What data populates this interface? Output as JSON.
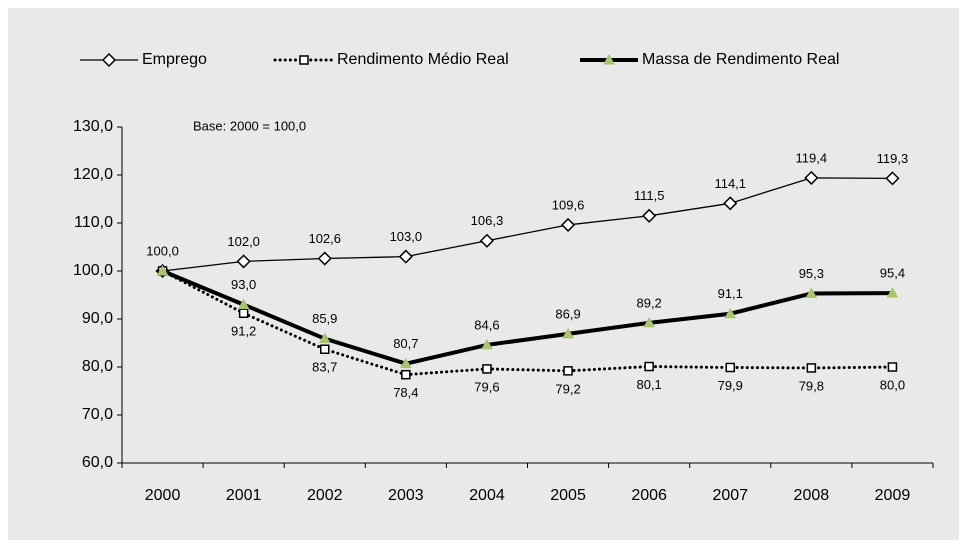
{
  "chart_data": {
    "type": "line",
    "annotation": "Base: 2000 = 100,0",
    "categories": [
      "2000",
      "2001",
      "2002",
      "2003",
      "2004",
      "2005",
      "2006",
      "2007",
      "2008",
      "2009"
    ],
    "series": [
      {
        "name": "Emprego",
        "color": "#000000",
        "marker": "diamond",
        "line": "thin",
        "label_side": "above",
        "values": [
          100,
          102.0,
          102.6,
          103.0,
          106.3,
          109.6,
          111.5,
          114.1,
          119.4,
          119.3
        ],
        "value_labels": [
          "100,0",
          "102,0",
          "102,6",
          "103,0",
          "106,3",
          "109,6",
          "111,5",
          "114,1",
          "119,4",
          "119,3"
        ]
      },
      {
        "name": "Rendimento Médio Real",
        "color": "#000000",
        "marker": "square",
        "line": "dotted",
        "label_side": "below",
        "values": [
          100,
          91.2,
          83.7,
          78.4,
          79.6,
          79.2,
          80.1,
          79.9,
          79.8,
          80.0
        ],
        "value_labels": [
          null,
          "91,2",
          "83,7",
          "78,4",
          "79,6",
          "79,2",
          "80,1",
          "79,9",
          "79,8",
          "80,0"
        ]
      },
      {
        "name": "Massa de Rendimento Real",
        "color": "#000000",
        "marker": "triangle",
        "marker_color": "#a9c46e",
        "line": "thick",
        "label_side": "above",
        "values": [
          100,
          93.0,
          85.9,
          80.7,
          84.6,
          86.9,
          89.2,
          91.1,
          95.3,
          95.4
        ],
        "value_labels": [
          null,
          "93,0",
          "85,9",
          "80,7",
          "84,6",
          "86,9",
          "89,2",
          "91,1",
          "95,3",
          "95,4"
        ]
      }
    ],
    "ylim": [
      60,
      130
    ],
    "yticks": [
      {
        "value": 60,
        "label": "60,0"
      },
      {
        "value": 70,
        "label": "70,0"
      },
      {
        "value": 80,
        "label": "80,0"
      },
      {
        "value": 90,
        "label": "90,0"
      },
      {
        "value": 100,
        "label": "100,0"
      },
      {
        "value": 110,
        "label": "110,0"
      },
      {
        "value": 120,
        "label": "120,0"
      },
      {
        "value": 130,
        "label": "130,0"
      }
    ],
    "grid": false
  }
}
